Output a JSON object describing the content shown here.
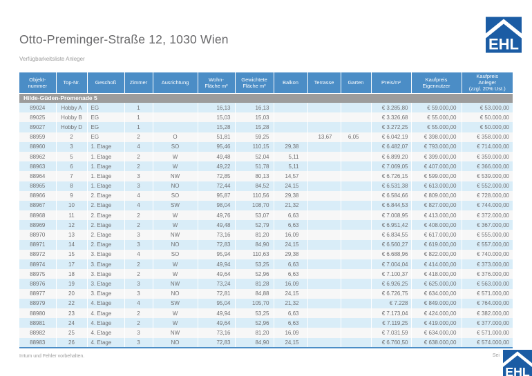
{
  "header": {
    "title": "Otto-Preminger-Straße 12, 1030 Wien",
    "subtitle": "Verfügbarkeitsliste Anleger"
  },
  "brand": {
    "logo_text": "EHL"
  },
  "colors": {
    "accent": "#4b8dc6",
    "row-alt": "#d9edf8",
    "row-plain": "#f7f7f7",
    "section-bg": "#9c9c9c",
    "text": "#6f6f71",
    "muted": "#9b9b9b",
    "logo-blue": "#1b5ca4"
  },
  "table": {
    "section": "Hilde-Güden-Promenade 5",
    "columns": [
      {
        "key": "objektnummer",
        "label": "Objekt-\nnummer"
      },
      {
        "key": "topnr",
        "label": "Top-Nr."
      },
      {
        "key": "geschoss",
        "label": "Geschoß"
      },
      {
        "key": "zimmer",
        "label": "Zimmer"
      },
      {
        "key": "ausrichtung",
        "label": "Ausrichtung"
      },
      {
        "key": "wohnflaeche",
        "label": "Wohn-\nFläche m²"
      },
      {
        "key": "gewichtete_flaeche",
        "label": "Gewichtete\nFläche m²"
      },
      {
        "key": "balkon",
        "label": "Balkon"
      },
      {
        "key": "terrasse",
        "label": "Terrasse"
      },
      {
        "key": "garten",
        "label": "Garten"
      },
      {
        "key": "preis_m2",
        "label": "Preis/m²"
      },
      {
        "key": "kaufpreis_eigennutzer",
        "label": "Kaufpreis\nEigennutzer"
      },
      {
        "key": "kaufpreis_anleger",
        "label": "Kaufpreis\nAnleger\n(zzgl. 20% Ust.)"
      }
    ],
    "rows": [
      [
        "89024",
        "Hobby A",
        "EG",
        "1",
        "",
        "16,13",
        "16,13",
        "",
        "",
        "",
        "€ 3.285,80",
        "€ 59.000,00",
        "€ 53.000,00"
      ],
      [
        "89025",
        "Hobby B",
        "EG",
        "1",
        "",
        "15,03",
        "15,03",
        "",
        "",
        "",
        "€ 3.326,68",
        "€ 55.000,00",
        "€ 50.000,00"
      ],
      [
        "89027",
        "Hobby D",
        "EG",
        "1",
        "",
        "15,28",
        "15,28",
        "",
        "",
        "",
        "€ 3.272,25",
        "€ 55.000,00",
        "€ 50.000,00"
      ],
      [
        "88959",
        "2",
        "EG",
        "2",
        "O",
        "51,81",
        "59,25",
        "",
        "13,67",
        "6,05",
        "€ 6.042,19",
        "€ 398.000,00",
        "€ 358.000,00"
      ],
      [
        "88960",
        "3",
        "1. Etage",
        "4",
        "SO",
        "95,46",
        "110,15",
        "29,38",
        "",
        "",
        "€ 6.482,07",
        "€ 793.000,00",
        "€ 714.000,00"
      ],
      [
        "88962",
        "5",
        "1. Etage",
        "2",
        "W",
        "49,48",
        "52,04",
        "5,11",
        "",
        "",
        "€ 6.899,20",
        "€ 399.000,00",
        "€ 359.000,00"
      ],
      [
        "88963",
        "6",
        "1. Etage",
        "2",
        "W",
        "49,22",
        "51,78",
        "5,11",
        "",
        "",
        "€ 7.069,05",
        "€ 407.000,00",
        "€ 366.000,00"
      ],
      [
        "88964",
        "7",
        "1. Etage",
        "3",
        "NW",
        "72,85",
        "80,13",
        "14,57",
        "",
        "",
        "€ 6.726,15",
        "€ 599.000,00",
        "€ 539.000,00"
      ],
      [
        "88965",
        "8",
        "1. Etage",
        "3",
        "NO",
        "72,44",
        "84,52",
        "24,15",
        "",
        "",
        "€ 6.531,38",
        "€ 613.000,00",
        "€ 552.000,00"
      ],
      [
        "88966",
        "9",
        "2. Etage",
        "4",
        "SO",
        "95,87",
        "110,56",
        "29,38",
        "",
        "",
        "€ 6.584,66",
        "€ 809.000,00",
        "€ 728.000,00"
      ],
      [
        "88967",
        "10",
        "2. Etage",
        "4",
        "SW",
        "98,04",
        "108,70",
        "21,32",
        "",
        "",
        "€ 6.844,53",
        "€ 827.000,00",
        "€ 744.000,00"
      ],
      [
        "88968",
        "11",
        "2. Etage",
        "2",
        "W",
        "49,76",
        "53,07",
        "6,63",
        "",
        "",
        "€ 7.008,95",
        "€ 413.000,00",
        "€ 372.000,00"
      ],
      [
        "88969",
        "12",
        "2. Etage",
        "2",
        "W",
        "49,48",
        "52,79",
        "6,63",
        "",
        "",
        "€ 6.951,42",
        "€ 408.000,00",
        "€ 367.000,00"
      ],
      [
        "88970",
        "13",
        "2. Etage",
        "3",
        "NW",
        "73,16",
        "81,20",
        "16,09",
        "",
        "",
        "€ 6.834,55",
        "€ 617.000,00",
        "€ 555.000,00"
      ],
      [
        "88971",
        "14",
        "2. Etage",
        "3",
        "NO",
        "72,83",
        "84,90",
        "24,15",
        "",
        "",
        "€ 6.560,27",
        "€ 619.000,00",
        "€ 557.000,00"
      ],
      [
        "88972",
        "15",
        "3. Etage",
        "4",
        "SO",
        "95,94",
        "110,63",
        "29,38",
        "",
        "",
        "€ 6.688,96",
        "€ 822.000,00",
        "€ 740.000,00"
      ],
      [
        "88974",
        "17",
        "3. Etage",
        "2",
        "W",
        "49,94",
        "53,25",
        "6,63",
        "",
        "",
        "€ 7.004,04",
        "€ 414.000,00",
        "€ 373.000,00"
      ],
      [
        "88975",
        "18",
        "3. Etage",
        "2",
        "W",
        "49,64",
        "52,96",
        "6,63",
        "",
        "",
        "€ 7.100,37",
        "€ 418.000,00",
        "€ 376.000,00"
      ],
      [
        "88976",
        "19",
        "3. Etage",
        "3",
        "NW",
        "73,24",
        "81,28",
        "16,09",
        "",
        "",
        "€ 6.926,25",
        "€ 625.000,00",
        "€ 563.000,00"
      ],
      [
        "88977",
        "20",
        "3. Etage",
        "3",
        "NO",
        "72,81",
        "84,88",
        "24,15",
        "",
        "",
        "€ 6.726,75",
        "€ 634.000,00",
        "€ 571.000,00"
      ],
      [
        "88979",
        "22",
        "4. Etage",
        "4",
        "SW",
        "95,04",
        "105,70",
        "21,32",
        "",
        "",
        "€ 7.228",
        "€ 849.000,00",
        "€ 764.000,00"
      ],
      [
        "88980",
        "23",
        "4. Etage",
        "2",
        "W",
        "49,94",
        "53,25",
        "6,63",
        "",
        "",
        "€ 7.173,04",
        "€ 424.000,00",
        "€ 382.000,00"
      ],
      [
        "88981",
        "24",
        "4. Etage",
        "2",
        "W",
        "49,64",
        "52,96",
        "6,63",
        "",
        "",
        "€ 7.119,25",
        "€ 419.000,00",
        "€ 377.000,00"
      ],
      [
        "88982",
        "25",
        "4. Etage",
        "3",
        "NW",
        "73,16",
        "81,20",
        "16,09",
        "",
        "",
        "€ 7.031,59",
        "€ 634.000,00",
        "€ 571.000,00"
      ],
      [
        "88983",
        "26",
        "4. Etage",
        "3",
        "NO",
        "72,83",
        "84,90",
        "24,15",
        "",
        "",
        "€ 6.760,50",
        "€ 638.000,00",
        "€ 574.000,00"
      ]
    ]
  },
  "footer": {
    "disclaimer": "Irrtum und Fehler vorbehalten.",
    "page_label": "Sei"
  }
}
